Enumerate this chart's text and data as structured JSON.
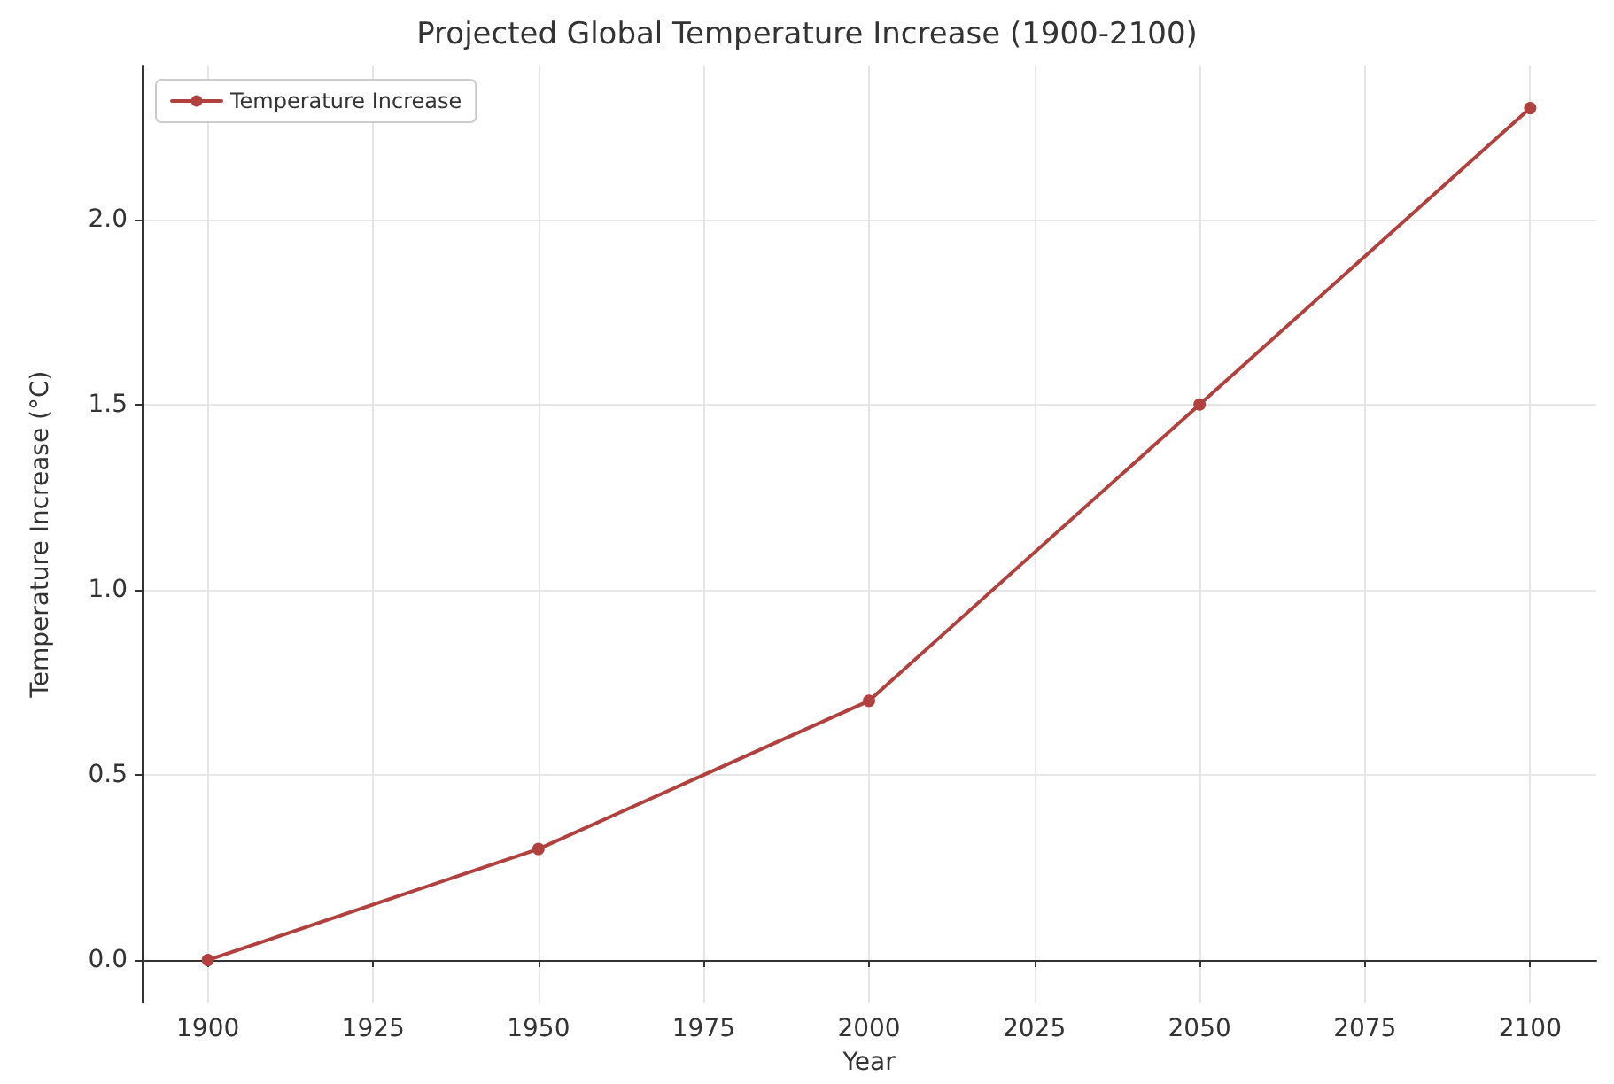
{
  "chart_data": {
    "type": "line",
    "title": "Projected Global Temperature Increase (1900-2100)",
    "xlabel": "Year",
    "ylabel": "Temperature Increase (°C)",
    "x": [
      1900,
      1950,
      2000,
      2050,
      2100
    ],
    "series": [
      {
        "name": "Temperature Increase",
        "color": "#b0413e",
        "values": [
          0,
          0.3,
          0.7,
          1.5,
          2.3
        ]
      }
    ],
    "xlim": [
      1890,
      2110
    ],
    "xticks": [
      1900,
      1925,
      1950,
      1975,
      2000,
      2025,
      2050,
      2075,
      2100
    ],
    "ylim": [
      -0.115,
      2.415
    ],
    "yticks": [
      {
        "value": 0,
        "label": "0.0"
      },
      {
        "value": 0.5,
        "label": "0.5"
      },
      {
        "value": 1,
        "label": "1.0"
      },
      {
        "value": 1.5,
        "label": "1.5"
      },
      {
        "value": 2,
        "label": "2.0"
      }
    ],
    "grid": true,
    "legend": "top left",
    "marker": "circle",
    "line_style": "solid"
  }
}
